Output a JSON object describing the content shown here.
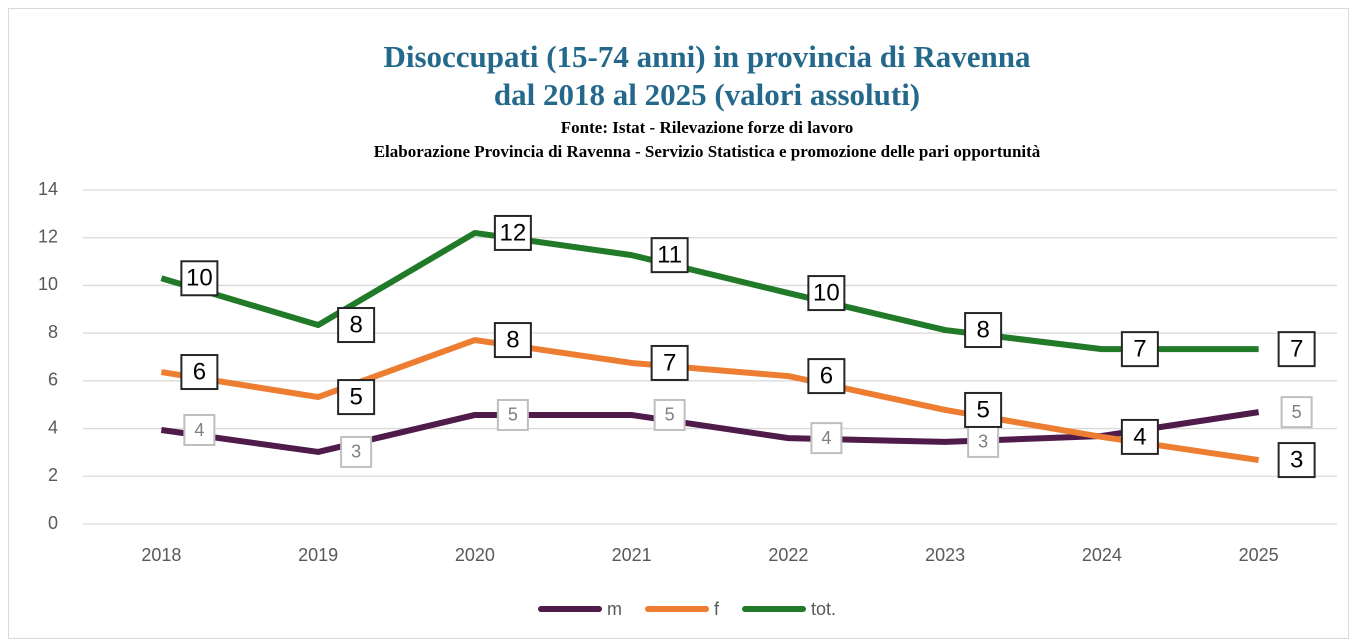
{
  "chart_data": {
    "type": "line",
    "title": [
      "Disoccupati (15-74 anni) in provincia di Ravenna",
      "dal 2018 al 2025 (valori assoluti)"
    ],
    "subtitle": [
      "Fonte: Istat - Rilevazione forze di lavoro",
      "Elaborazione Provincia di Ravenna - Servizio Statistica e promozione delle pari opportunità"
    ],
    "categories": [
      "2018",
      "2019",
      "2020",
      "2021",
      "2022",
      "2023",
      "2024",
      "2025"
    ],
    "series": [
      {
        "name": "m",
        "color": "#4e1b4a",
        "values": [
          3.94,
          3.02,
          4.57,
          4.57,
          3.6,
          3.44,
          3.69,
          4.69
        ],
        "value_labels": [
          "4",
          "3",
          "5",
          "5",
          "4",
          "3",
          "4",
          "5"
        ]
      },
      {
        "name": "f",
        "color": "#ed7d31",
        "values": [
          6.37,
          5.32,
          7.71,
          6.75,
          6.2,
          4.78,
          3.65,
          2.68
        ],
        "value_labels": [
          "6",
          "5",
          "8",
          "7",
          "6",
          "5",
          "4",
          "3"
        ]
      },
      {
        "name": "tot.",
        "color": "#217a28",
        "values": [
          10.3,
          8.34,
          12.2,
          11.27,
          9.68,
          8.13,
          7.33,
          7.33
        ],
        "value_labels": [
          "10",
          "8",
          "12",
          "11",
          "10",
          "8",
          "7",
          "7"
        ]
      }
    ],
    "ylim": [
      0,
      14
    ],
    "yticks": [
      0,
      2,
      4,
      6,
      8,
      10,
      12,
      14
    ],
    "grid": true,
    "legend": "bottom"
  }
}
